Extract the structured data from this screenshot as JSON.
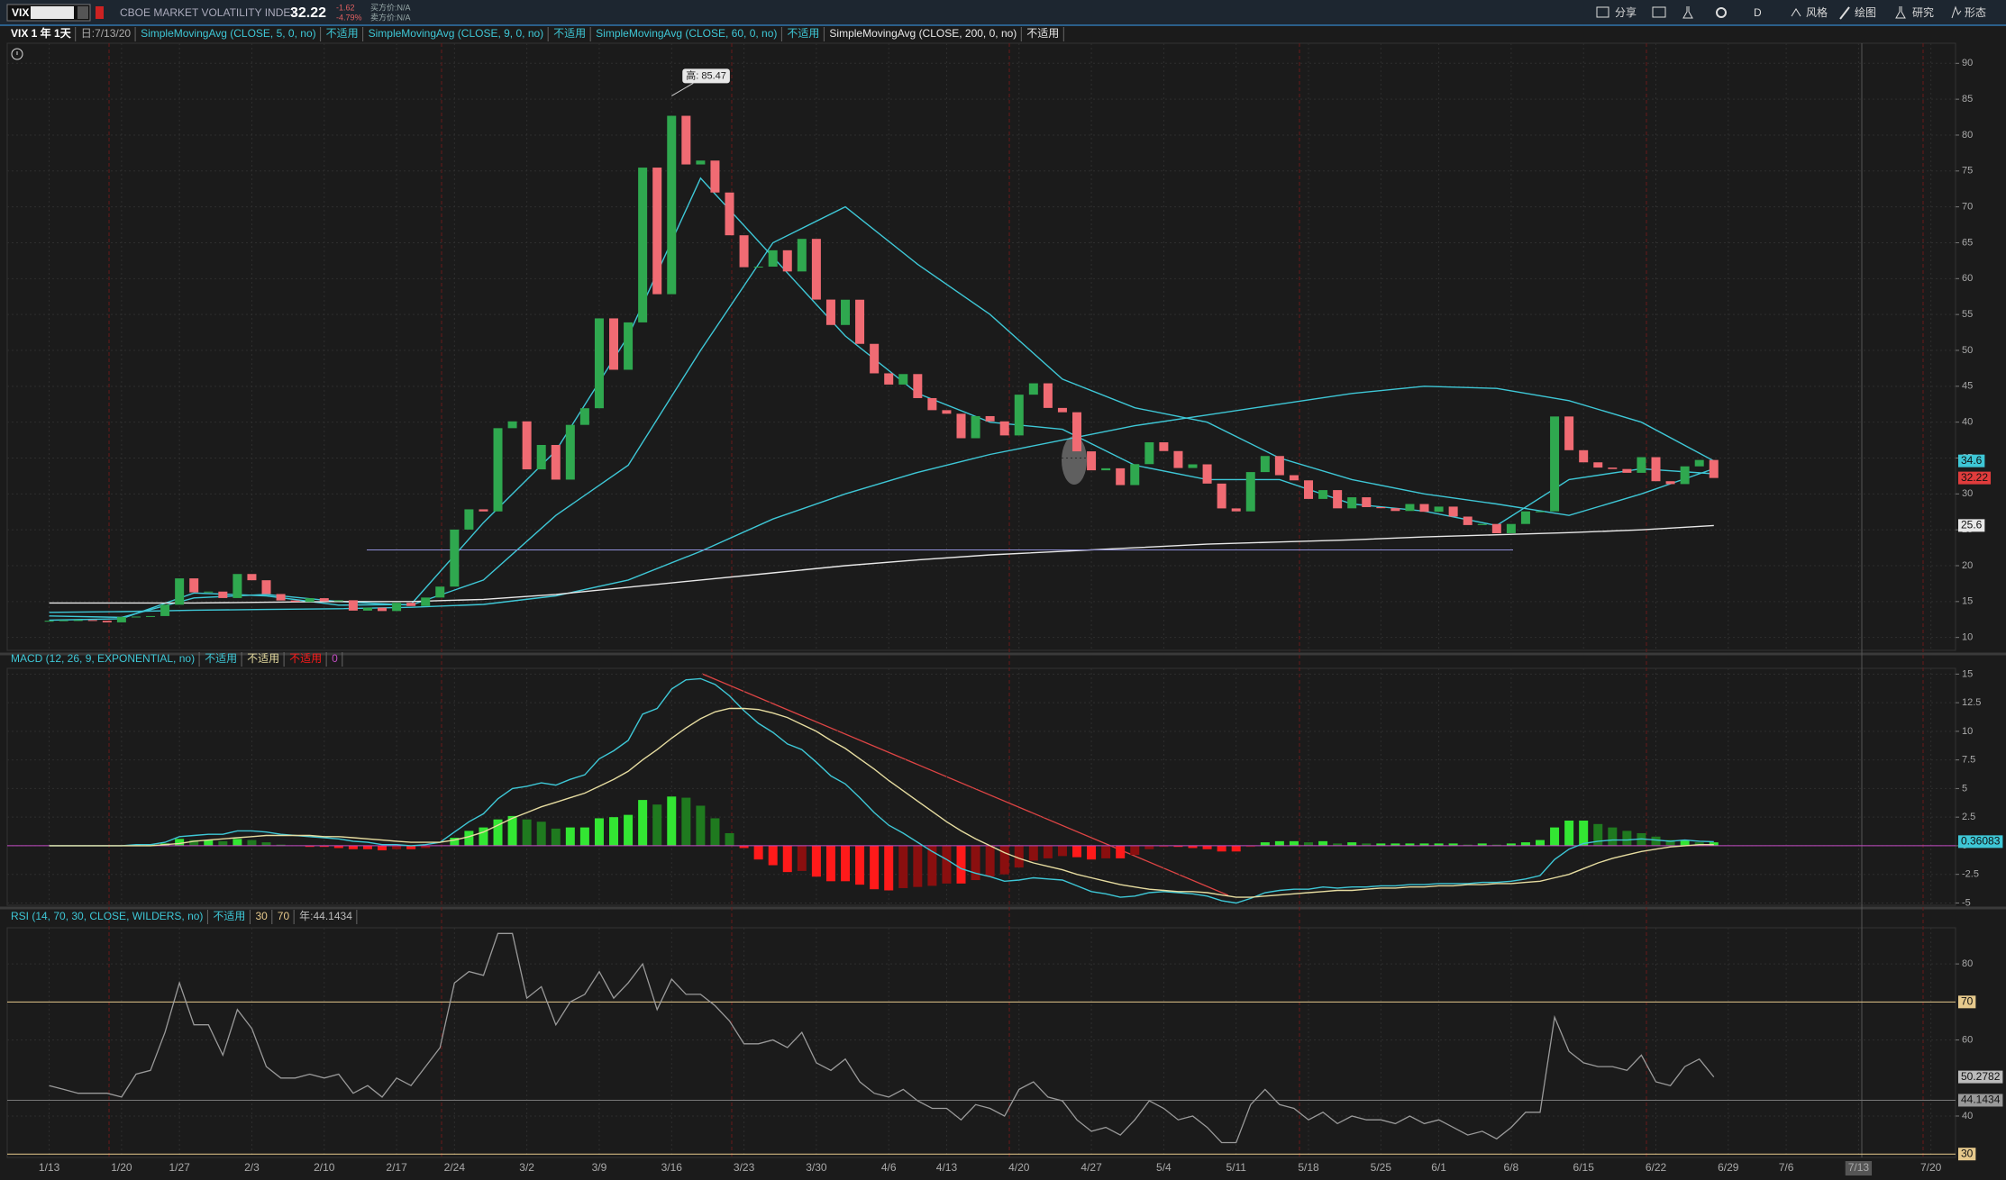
{
  "toolbar": {
    "symbol": "VIX",
    "description": "CBOE MARKET VOLATILITY INDEX",
    "last": "32.22",
    "change": "-1.62",
    "change_pct": "-4.79%",
    "bid": "买方价:N/A",
    "ask": "卖方价:N/A",
    "buttons": [
      "分享",
      "D",
      "风格",
      "绘图",
      "研究",
      "形态"
    ]
  },
  "chart_data": [
    {
      "type": "candlestick",
      "label": "VIX 1 年 1天",
      "date_label": "日:7/13/20",
      "values": [
        12.32,
        12.39,
        12.42,
        12.32,
        12.1,
        12.85,
        12.91,
        12.98,
        14.56,
        18.23,
        16.28,
        16.39,
        15.49,
        18.84,
        17.97,
        16.05,
        15.15,
        14.96,
        15.47,
        15.04,
        15.18,
        13.74,
        14.15,
        13.68,
        14.83,
        14.38,
        15.56,
        17.08,
        25.03,
        27.85,
        27.56,
        39.16,
        40.11,
        33.42,
        36.82,
        31.99,
        39.62,
        41.94,
        54.46,
        47.3,
        53.9,
        75.47,
        57.83,
        82.69,
        75.91,
        76.45,
        72.0,
        66.04,
        61.59,
        61.67,
        63.95,
        61.0,
        65.54,
        57.08,
        53.54,
        57.06,
        50.91,
        46.8,
        45.24,
        46.7,
        43.35,
        41.67,
        41.17,
        37.76,
        40.84,
        40.11,
        38.15,
        43.83,
        45.41,
        41.98,
        41.38,
        35.93,
        33.29,
        33.57,
        31.23,
        34.15,
        37.19,
        35.97,
        33.61,
        34.12,
        31.44,
        27.98,
        27.57,
        33.04,
        35.28,
        32.61,
        31.89,
        29.3,
        30.53,
        27.99,
        29.53,
        28.16,
        28.01,
        27.62,
        28.59,
        27.51,
        28.23,
        26.84,
        25.66,
        25.81,
        24.52,
        25.81,
        27.57,
        27.57,
        40.79,
        36.09,
        34.4,
        33.67,
        33.47,
        32.94,
        35.12,
        31.77,
        31.37,
        33.84,
        34.73,
        32.22
      ],
      "up_color": "#2fa84f",
      "down_color": "#f06b73",
      "series": [
        {
          "name": "SimpleMovingAvg (CLOSE, 5, 0, no)",
          "status": "不适用",
          "color": "#3ec7d6",
          "x": [
            0,
            5,
            10,
            15,
            20,
            25,
            30,
            35,
            40,
            45,
            50,
            55,
            60,
            65,
            70,
            75,
            80,
            85,
            90,
            95,
            100,
            105,
            110,
            115
          ],
          "values": [
            12.4,
            12.6,
            16.2,
            15.8,
            14.5,
            14.6,
            26,
            36,
            52,
            74,
            63,
            52,
            44,
            40,
            39,
            34,
            32,
            32,
            28.6,
            27.6,
            25.6,
            32,
            33.5,
            32.8
          ]
        },
        {
          "name": "SimpleMovingAvg (CLOSE, 9, 0, no)",
          "status": "不适用",
          "color": "#3ec7d6",
          "x": [
            0,
            5,
            10,
            15,
            20,
            25,
            30,
            35,
            40,
            45,
            50,
            55,
            60,
            65,
            70,
            75,
            80,
            85,
            90,
            95,
            100,
            105,
            110,
            115
          ],
          "values": [
            13,
            12.8,
            15.5,
            16,
            15,
            14.5,
            18,
            27,
            34,
            50,
            65,
            70,
            62,
            55,
            46,
            42,
            40,
            35,
            32,
            30,
            28.6,
            27,
            30,
            33.5
          ]
        },
        {
          "name": "SimpleMovingAvg (CLOSE, 60, 0, no)",
          "status": "不适用",
          "color": "#3ec7d6",
          "x": [
            0,
            5,
            10,
            15,
            20,
            25,
            30,
            35,
            40,
            45,
            50,
            55,
            60,
            65,
            70,
            75,
            80,
            85,
            90,
            95,
            100,
            105,
            110,
            115
          ],
          "values": [
            13.5,
            13.6,
            13.8,
            13.9,
            14,
            14.2,
            14.6,
            15.8,
            18,
            22,
            26.5,
            30,
            33,
            35.5,
            37.5,
            39.5,
            41,
            42.5,
            44,
            45,
            44.7,
            43,
            40,
            34.6
          ]
        },
        {
          "name": "SimpleMovingAvg (CLOSE, 200, 0, no)",
          "status": "不适用",
          "color": "#e8e8e8",
          "x": [
            0,
            5,
            10,
            15,
            20,
            25,
            30,
            35,
            40,
            45,
            50,
            55,
            60,
            65,
            70,
            75,
            80,
            85,
            90,
            95,
            100,
            105,
            110,
            115
          ],
          "values": [
            14.8,
            14.8,
            14.8,
            14.9,
            15,
            15,
            15.3,
            16,
            17,
            18,
            19,
            20,
            20.8,
            21.5,
            22,
            22.5,
            23,
            23.3,
            23.6,
            24,
            24.3,
            24.6,
            25,
            25.6
          ]
        }
      ],
      "high": {
        "label": "高: 85.47",
        "value": 85.47
      },
      "hline": 22.2,
      "markers": [
        {
          "value": 34.6,
          "color": "#3ec7d6"
        },
        {
          "value": 32.22,
          "color": "#e03c3c"
        },
        {
          "value": 25.6,
          "color": "#e8e8e8"
        }
      ],
      "xlim": [
        -2.9,
        131.7
      ],
      "ylim": [
        8.2,
        92.8
      ],
      "yticks": [
        10,
        15,
        20,
        25,
        30,
        35,
        40,
        45,
        50,
        55,
        60,
        65,
        70,
        75,
        80,
        85,
        90
      ],
      "grid": true
    },
    {
      "type": "macd",
      "title": "MACD (12, 26, 9, EXPONENTIAL, no)",
      "macd": {
        "status": "不适用",
        "color": "#3ec7d6",
        "values": [
          0,
          0,
          0,
          0,
          0,
          0,
          0.1,
          0.1,
          0.3,
          0.8,
          0.9,
          1.0,
          1.0,
          1.3,
          1.3,
          1.2,
          1.0,
          0.9,
          0.8,
          0.7,
          0.6,
          0.4,
          0.3,
          0.1,
          0.1,
          0,
          0.1,
          0.3,
          1.2,
          2.1,
          2.8,
          4.1,
          5.0,
          5.2,
          5.5,
          5.3,
          5.8,
          6.2,
          7.6,
          8.3,
          9.2,
          11.5,
          12.0,
          13.7,
          14.5,
          14.6,
          14.1,
          13.1,
          11.8,
          10.7,
          9.9,
          8.9,
          8.4,
          7.3,
          6.1,
          5.4,
          4.2,
          2.9,
          1.8,
          1.1,
          0.3,
          -0.5,
          -1.2,
          -2.0,
          -2.4,
          -2.7,
          -3.1,
          -3.0,
          -2.8,
          -2.9,
          -3.0,
          -3.5,
          -4.0,
          -4.2,
          -4.5,
          -4.4,
          -4.1,
          -4.0,
          -4.1,
          -4.2,
          -4.4,
          -4.8,
          -5.0,
          -4.6,
          -4.1,
          -3.9,
          -3.8,
          -3.8,
          -3.6,
          -3.7,
          -3.6,
          -3.6,
          -3.5,
          -3.5,
          -3.4,
          -3.4,
          -3.3,
          -3.3,
          -3.3,
          -3.2,
          -3.2,
          -3.1,
          -2.9,
          -2.6,
          -1.2,
          -0.3,
          0.2,
          0.4,
          0.5,
          0.5,
          0.6,
          0.5,
          0.4,
          0.5,
          0.4,
          0.36
        ]
      },
      "signal": {
        "status": "不适用",
        "color": "#e6dca0",
        "values": [
          0,
          0,
          0,
          0,
          0,
          0,
          0,
          0,
          0.1,
          0.2,
          0.4,
          0.5,
          0.6,
          0.7,
          0.8,
          0.9,
          0.9,
          0.9,
          0.9,
          0.8,
          0.8,
          0.7,
          0.6,
          0.5,
          0.4,
          0.3,
          0.3,
          0.3,
          0.5,
          0.8,
          1.2,
          1.8,
          2.4,
          2.9,
          3.4,
          3.8,
          4.2,
          4.6,
          5.2,
          5.8,
          6.5,
          7.5,
          8.4,
          9.4,
          10.3,
          11.1,
          11.7,
          12.0,
          12.0,
          11.9,
          11.6,
          11.2,
          10.6,
          10.0,
          9.2,
          8.5,
          7.6,
          6.7,
          5.7,
          4.8,
          3.9,
          3.0,
          2.1,
          1.3,
          0.6,
          0,
          -0.6,
          -1.1,
          -1.5,
          -1.8,
          -2.1,
          -2.5,
          -2.8,
          -3.1,
          -3.4,
          -3.6,
          -3.8,
          -3.9,
          -4.0,
          -4.0,
          -4.1,
          -4.3,
          -4.5,
          -4.5,
          -4.4,
          -4.3,
          -4.2,
          -4.1,
          -4.0,
          -3.9,
          -3.9,
          -3.8,
          -3.7,
          -3.7,
          -3.6,
          -3.6,
          -3.5,
          -3.5,
          -3.4,
          -3.4,
          -3.3,
          -3.3,
          -3.2,
          -3.1,
          -2.8,
          -2.5,
          -2.0,
          -1.5,
          -1.1,
          -0.8,
          -0.5,
          -0.3,
          -0.1,
          0,
          0.1,
          0.1
        ]
      },
      "histogram": {
        "status": "不适用",
        "up_color": "#33e633",
        "up_fade_color": "#1f7a1f",
        "down_color": "#ff1a1a",
        "down_fade_color": "#8a0f0f",
        "values": [
          0,
          0,
          0,
          0,
          0,
          0,
          0.1,
          0.1,
          0.2,
          0.6,
          0.5,
          0.5,
          0.4,
          0.6,
          0.5,
          0.3,
          0.1,
          0,
          -0.1,
          -0.1,
          -0.2,
          -0.3,
          -0.3,
          -0.4,
          -0.3,
          -0.3,
          -0.2,
          0,
          0.7,
          1.3,
          1.6,
          2.3,
          2.6,
          2.3,
          2.1,
          1.5,
          1.6,
          1.6,
          2.4,
          2.5,
          2.7,
          4.0,
          3.6,
          4.3,
          4.2,
          3.5,
          2.4,
          1.1,
          -0.2,
          -1.2,
          -1.7,
          -2.3,
          -2.2,
          -2.7,
          -3.1,
          -3.1,
          -3.4,
          -3.8,
          -3.9,
          -3.7,
          -3.6,
          -3.5,
          -3.3,
          -3.3,
          -3.0,
          -2.7,
          -2.5,
          -1.9,
          -1.3,
          -1.1,
          -0.9,
          -1.0,
          -1.2,
          -1.1,
          -1.1,
          -0.8,
          -0.3,
          -0.1,
          -0.1,
          -0.2,
          -0.3,
          -0.5,
          -0.5,
          -0.1,
          0.3,
          0.4,
          0.4,
          0.3,
          0.4,
          0.2,
          0.3,
          0.2,
          0.2,
          0.2,
          0.2,
          0.2,
          0.2,
          0.2,
          0.1,
          0.2,
          0.1,
          0.2,
          0.3,
          0.5,
          1.6,
          2.2,
          2.2,
          1.9,
          1.6,
          1.3,
          1.1,
          0.8,
          0.5,
          0.5,
          0.3,
          0.3
        ]
      },
      "zero_line": 0,
      "zero_color": "#c44cc4",
      "last": {
        "value": 0.36083,
        "color": "#3ec7d6"
      },
      "xlim": [
        -2.9,
        131.7
      ],
      "ylim": [
        -5.2,
        15.5
      ],
      "yticks": [
        -5,
        -2.5,
        0,
        2.5,
        5,
        7.5,
        10,
        12.5,
        15
      ],
      "grid": true
    },
    {
      "type": "line",
      "title": "RSI (14, 70, 30, CLOSE, WILDERS, no)",
      "status": "不适用",
      "color": "#9a9a9a",
      "values": [
        48,
        47,
        46,
        46,
        46,
        45,
        51,
        52,
        62,
        75,
        64,
        64,
        56,
        68,
        63,
        53,
        50,
        50,
        51,
        50,
        51,
        46,
        48,
        45,
        50,
        48,
        53,
        58,
        75,
        78,
        77,
        88,
        88,
        71,
        74,
        64,
        70,
        72,
        78,
        71,
        75,
        80,
        68,
        76,
        72,
        72,
        69,
        65,
        59,
        59,
        60,
        58,
        62,
        54,
        52,
        55,
        49,
        46,
        45,
        47,
        44,
        42,
        42,
        39,
        43,
        42,
        40,
        47,
        49,
        45,
        44,
        39,
        36,
        37,
        35,
        39,
        44,
        42,
        39,
        40,
        37,
        33,
        33,
        43,
        47,
        43,
        42,
        39,
        41,
        38,
        40,
        39,
        39,
        38,
        40,
        38,
        39,
        37,
        35,
        36,
        34,
        37,
        41,
        41,
        66,
        57,
        54,
        53,
        53,
        52,
        56,
        49,
        48,
        53,
        55,
        50.2782
      ],
      "oversold": 30,
      "overbought": 70,
      "level_color": "#e6c98c",
      "reference": {
        "label": "年:44.1434",
        "value": 44.1434
      },
      "last": 50.2782,
      "xlim": [
        -2.9,
        131.7
      ],
      "ylim": [
        29.1,
        89.5
      ],
      "yticks": [
        40,
        60,
        80
      ],
      "grid": true,
      "xticks": [
        {
          "value": 0,
          "label": "1/13"
        },
        {
          "value": 5,
          "label": "1/20"
        },
        {
          "value": 9,
          "label": "1/27"
        },
        {
          "value": 14,
          "label": "2/3"
        },
        {
          "value": 19,
          "label": "2/10"
        },
        {
          "value": 24,
          "label": "2/17"
        },
        {
          "value": 28,
          "label": "2/24"
        },
        {
          "value": 33,
          "label": "3/2"
        },
        {
          "value": 38,
          "label": "3/9"
        },
        {
          "value": 43,
          "label": "3/16"
        },
        {
          "value": 48,
          "label": "3/23"
        },
        {
          "value": 53,
          "label": "3/30"
        },
        {
          "value": 58,
          "label": "4/6"
        },
        {
          "value": 62,
          "label": "4/13"
        },
        {
          "value": 67,
          "label": "4/20"
        },
        {
          "value": 72,
          "label": "4/27"
        },
        {
          "value": 77,
          "label": "5/4"
        },
        {
          "value": 82,
          "label": "5/11"
        },
        {
          "value": 87,
          "label": "5/18"
        },
        {
          "value": 92,
          "label": "5/25"
        },
        {
          "value": 96,
          "label": "6/1"
        },
        {
          "value": 101,
          "label": "6/8"
        },
        {
          "value": 106,
          "label": "6/15"
        },
        {
          "value": 111,
          "label": "6/22"
        },
        {
          "value": 116,
          "label": "6/29"
        },
        {
          "value": 120,
          "label": "7/6"
        },
        {
          "value": 125,
          "label": "7/13"
        },
        {
          "value": 130,
          "label": "7/20"
        }
      ]
    }
  ]
}
